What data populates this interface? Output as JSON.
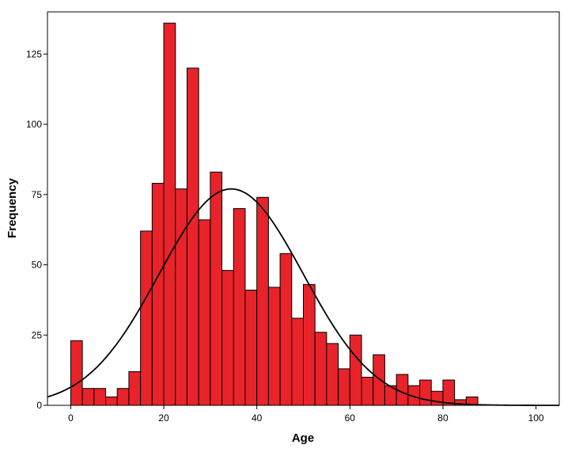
{
  "chart_data": {
    "type": "bar",
    "subtype": "histogram",
    "xlabel": "Age",
    "ylabel": "Frequency",
    "xlim": [
      -5,
      105
    ],
    "ylim": [
      0,
      140
    ],
    "bin_width": 2.5,
    "x_ticks": [
      0,
      20,
      40,
      60,
      80,
      100
    ],
    "y_ticks": [
      0,
      25,
      50,
      75,
      100,
      125
    ],
    "bar_color": "#E8232A",
    "bar_edge_color": "#000000",
    "curve_color": "#000000",
    "grid": false,
    "legend": "none",
    "bins": [
      {
        "start": 0,
        "value": 23
      },
      {
        "start": 2.5,
        "value": 6
      },
      {
        "start": 5,
        "value": 6
      },
      {
        "start": 7.5,
        "value": 3
      },
      {
        "start": 10,
        "value": 6
      },
      {
        "start": 12.5,
        "value": 12
      },
      {
        "start": 15,
        "value": 62
      },
      {
        "start": 17.5,
        "value": 79
      },
      {
        "start": 20,
        "value": 136
      },
      {
        "start": 22.5,
        "value": 77
      },
      {
        "start": 25,
        "value": 120
      },
      {
        "start": 27.5,
        "value": 66
      },
      {
        "start": 30,
        "value": 83
      },
      {
        "start": 32.5,
        "value": 48
      },
      {
        "start": 35,
        "value": 70
      },
      {
        "start": 37.5,
        "value": 41
      },
      {
        "start": 40,
        "value": 74
      },
      {
        "start": 42.5,
        "value": 42
      },
      {
        "start": 45,
        "value": 54
      },
      {
        "start": 47.5,
        "value": 31
      },
      {
        "start": 50,
        "value": 43
      },
      {
        "start": 52.5,
        "value": 26
      },
      {
        "start": 55,
        "value": 22
      },
      {
        "start": 57.5,
        "value": 13
      },
      {
        "start": 60,
        "value": 25
      },
      {
        "start": 62.5,
        "value": 10
      },
      {
        "start": 65,
        "value": 18
      },
      {
        "start": 67.5,
        "value": 7
      },
      {
        "start": 70,
        "value": 11
      },
      {
        "start": 72.5,
        "value": 7
      },
      {
        "start": 75,
        "value": 9
      },
      {
        "start": 77.5,
        "value": 5
      },
      {
        "start": 80,
        "value": 9
      },
      {
        "start": 82.5,
        "value": 2
      },
      {
        "start": 85,
        "value": 3
      }
    ],
    "normal_curve": {
      "mean": 34.5,
      "sd": 15.5,
      "peak": 77
    }
  }
}
